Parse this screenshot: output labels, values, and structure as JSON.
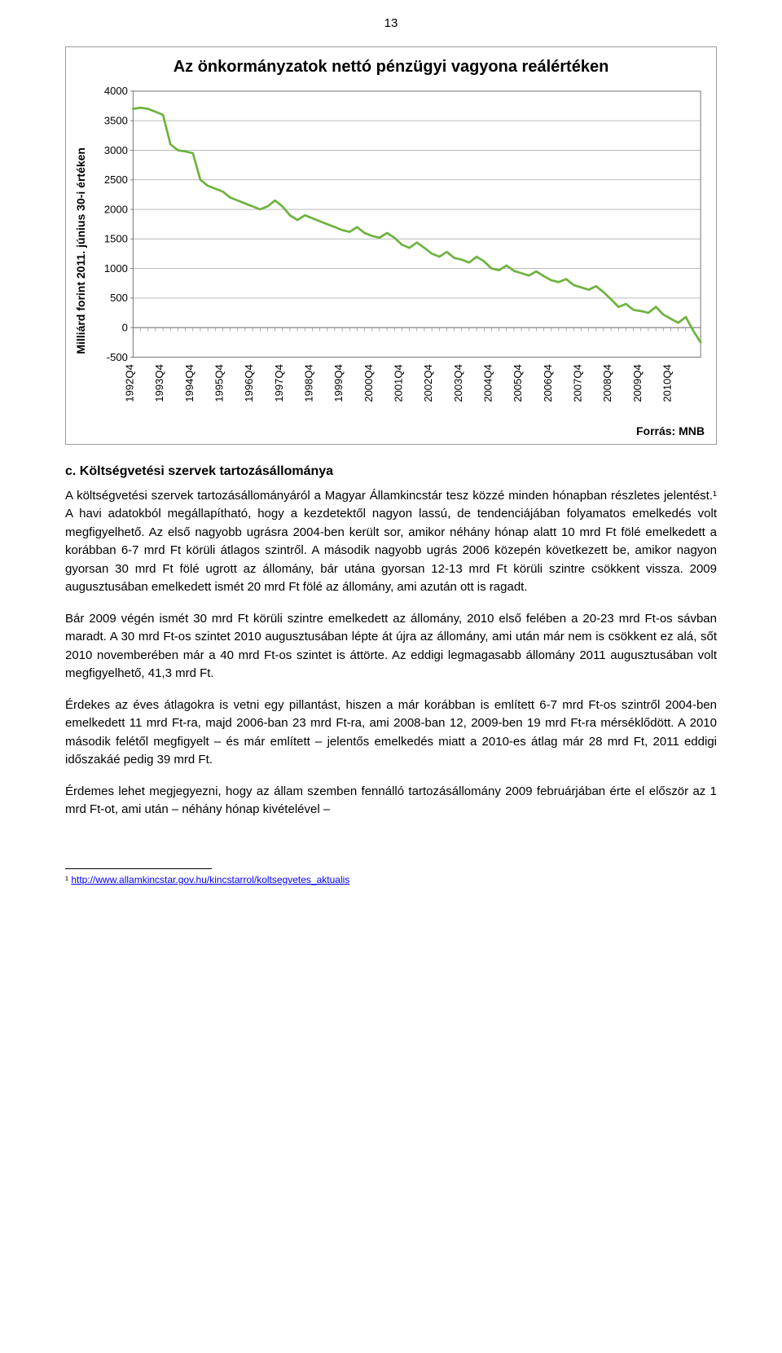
{
  "page_number": "13",
  "chart": {
    "type": "line",
    "title": "Az önkormányzatok nettó pénzügyi vagyona reálértéken",
    "y_axis_label": "Milliárd forint 2011. június 30-i értéken",
    "source_label": "Forrás: MNB",
    "ylim": [
      -500,
      4000
    ],
    "ytick_step": 500,
    "yticks": [
      -500,
      0,
      500,
      1000,
      1500,
      2000,
      2500,
      3000,
      3500,
      4000
    ],
    "categories": [
      "1992Q4",
      "1993Q4",
      "1994Q4",
      "1995Q4",
      "1996Q4",
      "1997Q4",
      "1998Q4",
      "1999Q4",
      "2000Q4",
      "2001Q4",
      "2002Q4",
      "2003Q4",
      "2004Q4",
      "2005Q4",
      "2006Q4",
      "2007Q4",
      "2008Q4",
      "2009Q4",
      "2010Q4"
    ],
    "n_points": 77,
    "values": [
      3700,
      3720,
      3700,
      3650,
      3600,
      3100,
      3000,
      2980,
      2950,
      2500,
      2400,
      2350,
      2300,
      2200,
      2150,
      2100,
      2050,
      2000,
      2050,
      2150,
      2050,
      1900,
      1820,
      1900,
      1850,
      1800,
      1750,
      1700,
      1650,
      1620,
      1700,
      1600,
      1550,
      1520,
      1600,
      1520,
      1400,
      1350,
      1440,
      1350,
      1250,
      1200,
      1280,
      1180,
      1150,
      1100,
      1200,
      1120,
      1000,
      970,
      1050,
      960,
      920,
      880,
      950,
      870,
      800,
      770,
      820,
      720,
      680,
      640,
      700,
      600,
      480,
      350,
      400,
      300,
      280,
      250,
      350,
      220,
      150,
      80,
      180,
      -50,
      -250
    ],
    "line_color": "#6db33f",
    "line_width": 2.5,
    "grid_color": "#b0b0b0",
    "axis_color": "#808080",
    "background_color": "#ffffff",
    "tick_font_size": 12,
    "title_fontsize": 20,
    "label_fontsize": 14,
    "category_label_rotation": -90
  },
  "section_heading": "c. Költségvetési szervek tartozásállománya",
  "paragraphs": {
    "p1": "A költségvetési szervek tartozásállományáról a Magyar Államkincstár tesz közzé minden hónapban részletes jelentést.¹ A havi adatokból megállapítható, hogy a kezdetektől nagyon lassú, de tendenciájában folyamatos emelkedés volt megfigyelhető. Az első nagyobb ugrásra 2004-ben került sor, amikor néhány hónap alatt 10 mrd Ft fölé emelkedett a korábban 6-7 mrd Ft körüli átlagos szintről. A második nagyobb ugrás 2006 közepén következett be, amikor nagyon gyorsan 30 mrd Ft fölé ugrott az állomány, bár utána gyorsan 12-13 mrd Ft körüli szintre csökkent vissza. 2009 augusztusában emelkedett ismét 20 mrd Ft fölé az állomány, ami azután ott is ragadt.",
    "p2": "Bár 2009 végén ismét 30 mrd Ft körüli szintre emelkedett az állomány, 2010 első felében a 20-23 mrd Ft-os sávban maradt. A 30 mrd Ft-os szintet 2010 augusztusában lépte át újra az állomány, ami után már nem is csökkent ez alá, sőt 2010 novemberében már a 40 mrd Ft-os szintet is áttörte. Az eddigi legmagasabb állomány 2011 augusztusában volt megfigyelhető, 41,3 mrd Ft.",
    "p3": "Érdekes az éves átlagokra is vetni egy pillantást, hiszen a már korábban is említett 6-7 mrd Ft-os szintről 2004-ben emelkedett 11 mrd Ft-ra, majd 2006-ban 23 mrd Ft-ra, ami 2008-ban 12, 2009-ben 19 mrd Ft-ra mérséklődött. A 2010 második felétől megfigyelt – és már említett – jelentős emelkedés miatt a 2010-es átlag már 28 mrd Ft, 2011 eddigi időszakáé pedig 39 mrd Ft.",
    "p4": "Érdemes lehet megjegyezni, hogy az állam szemben fennálló tartozásállomány 2009 februárjában érte el először az 1 mrd Ft-ot, ami után – néhány hónap kivételével –"
  },
  "footnote": {
    "marker": "¹",
    "url_text": "http://www.allamkincstar.gov.hu/kincstarrol/koltsegvetes_aktualis"
  }
}
